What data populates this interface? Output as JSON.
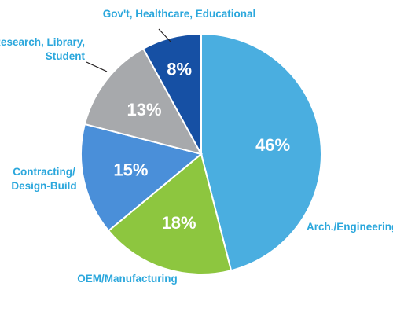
{
  "chart_data": {
    "type": "pie",
    "slices": [
      {
        "label": [
          "Arch./Engineering"
        ],
        "value": 46,
        "value_label": "46%",
        "color": "#4aaee0"
      },
      {
        "label": [
          "OEM/Manufacturing"
        ],
        "value": 18,
        "value_label": "18%",
        "color": "#8dc63f"
      },
      {
        "label": [
          "Contracting/",
          "Design-Build"
        ],
        "value": 15,
        "value_label": "15%",
        "color": "#4a8fd9"
      },
      {
        "label": [
          "Research, Library,",
          "Student"
        ],
        "value": 13,
        "value_label": "13%",
        "color": "#a7a9ac"
      },
      {
        "label": [
          "Gov't, Healthcare, Educational"
        ],
        "value": 8,
        "value_label": "8%",
        "color": "#1650a4"
      }
    ]
  }
}
